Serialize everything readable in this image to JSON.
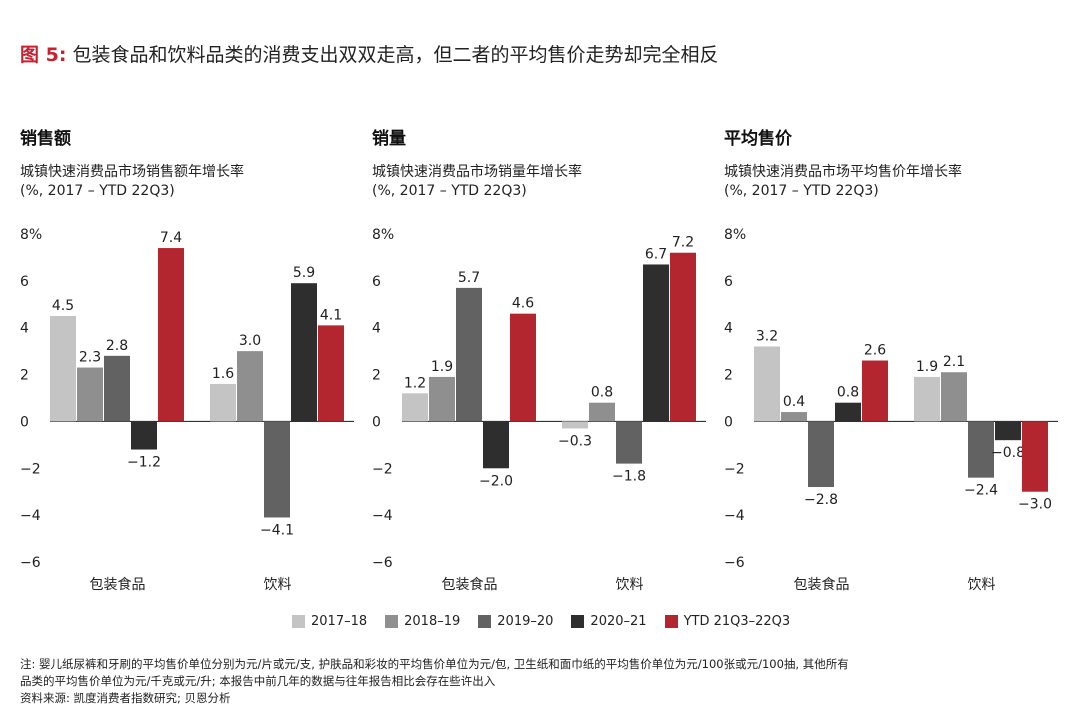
{
  "figure": {
    "tag": "图 5:",
    "title": "包装食品和饮料品类的消费支出双双走高，但二者的平均售价走势却完全相反"
  },
  "colors": {
    "accent": "#c9202f",
    "series": [
      "#c4c4c4",
      "#8f8f8f",
      "#626262",
      "#2e2e2e",
      "#b3262f"
    ]
  },
  "legend": [
    "2017–18",
    "2018–19",
    "2019–20",
    "2020–21",
    "YTD 21Q3–22Q3"
  ],
  "panels": [
    {
      "title": "销售额",
      "subtitle_line1": "城镇快速消费品市场销售额年增长率",
      "subtitle_line2": "(%, 2017 – YTD 22Q3)"
    },
    {
      "title": "销量",
      "subtitle_line1": "城镇快速消费品市场销量年增长率",
      "subtitle_line2": "(%, 2017 – YTD 22Q3)"
    },
    {
      "title": "平均售价",
      "subtitle_line1": "城镇快速消费品市场平均售价年增长率",
      "subtitle_line2": "(%, 2017 – YTD 22Q3)"
    }
  ],
  "chart_data": [
    {
      "type": "bar",
      "title": "销售额",
      "categories": [
        "包装食品",
        "饮料"
      ],
      "ylim": [
        -6,
        8
      ],
      "yticks": [
        "8%",
        "6",
        "4",
        "2",
        "0",
        "−2",
        "−4",
        "−6"
      ],
      "series": [
        {
          "name": "2017–18",
          "values": [
            4.5,
            1.6
          ],
          "labels": [
            "4.5",
            "1.6"
          ]
        },
        {
          "name": "2018–19",
          "values": [
            2.3,
            3.0
          ],
          "labels": [
            "2.3",
            "3.0"
          ]
        },
        {
          "name": "2019–20",
          "values": [
            2.8,
            -4.1
          ],
          "labels": [
            "2.8",
            "−4.1"
          ]
        },
        {
          "name": "2020–21",
          "values": [
            -1.2,
            5.9
          ],
          "labels": [
            "−1.2",
            "5.9"
          ]
        },
        {
          "name": "YTD 21Q3–22Q3",
          "values": [
            7.4,
            4.1
          ],
          "labels": [
            "7.4",
            "4.1"
          ]
        }
      ]
    },
    {
      "type": "bar",
      "title": "销量",
      "categories": [
        "包装食品",
        "饮料"
      ],
      "ylim": [
        -6,
        8
      ],
      "yticks": [
        "8%",
        "6",
        "4",
        "2",
        "0",
        "−2",
        "−4",
        "−6"
      ],
      "series": [
        {
          "name": "2017–18",
          "values": [
            1.2,
            -0.3
          ],
          "labels": [
            "1.2",
            "−0.3"
          ]
        },
        {
          "name": "2018–19",
          "values": [
            1.9,
            0.8
          ],
          "labels": [
            "1.9",
            "0.8"
          ]
        },
        {
          "name": "2019–20",
          "values": [
            5.7,
            -1.8
          ],
          "labels": [
            "5.7",
            "−1.8"
          ]
        },
        {
          "name": "2020–21",
          "values": [
            -2.0,
            6.7
          ],
          "labels": [
            "−2.0",
            "6.7"
          ]
        },
        {
          "name": "YTD 21Q3–22Q3",
          "values": [
            4.6,
            7.2
          ],
          "labels": [
            "4.6",
            "7.2"
          ]
        }
      ]
    },
    {
      "type": "bar",
      "title": "平均售价",
      "categories": [
        "包装食品",
        "饮料"
      ],
      "ylim": [
        -6,
        8
      ],
      "yticks": [
        "8%",
        "6",
        "4",
        "2",
        "0",
        "−2",
        "−4",
        "−6"
      ],
      "series": [
        {
          "name": "2017–18",
          "values": [
            3.2,
            1.9
          ],
          "labels": [
            "3.2",
            "1.9"
          ]
        },
        {
          "name": "2018–19",
          "values": [
            0.4,
            2.1
          ],
          "labels": [
            "0.4",
            "2.1"
          ]
        },
        {
          "name": "2019–20",
          "values": [
            -2.8,
            -2.4
          ],
          "labels": [
            "−2.8",
            "−2.4"
          ]
        },
        {
          "name": "2020–21",
          "values": [
            0.8,
            -0.8
          ],
          "labels": [
            "0.8",
            "−0.8"
          ]
        },
        {
          "name": "YTD 21Q3–22Q3",
          "values": [
            2.6,
            -3.0
          ],
          "labels": [
            "2.6",
            "−3.0"
          ]
        }
      ]
    }
  ],
  "notes": {
    "note_line1": "注: 婴儿纸尿裤和牙刷的平均售价单位分别为元/片或元/支, 护肤品和彩妆的平均售价单位为元/包, 卫生纸和面巾纸的平均售价单位为元/100张或元/100抽, 其他所有",
    "note_line2": "品类的平均售价单位为元/千克或元/升; 本报告中前几年的数据与往年报告相比会存在些许出入",
    "source": "资料来源: 凯度消费者指数研究; 贝恩分析"
  }
}
